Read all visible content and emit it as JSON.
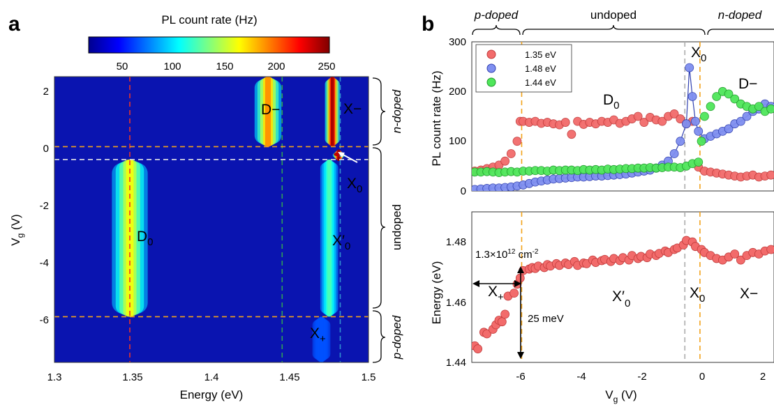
{
  "figure": {
    "panel_a_label": "a",
    "panel_b_label": "b"
  },
  "chart_data": [
    {
      "type": "heatmap",
      "panel": "a",
      "colorbar": {
        "title": "PL count rate (Hz)",
        "ticks": [
          "50",
          "100",
          "150",
          "200",
          "250"
        ],
        "range": [
          10,
          255
        ],
        "colormap": "jet"
      },
      "xlabel": "Energy (eV)",
      "ylabel_main": "V",
      "ylabel_sub": "g",
      "ylabel_unit": " (V)",
      "xlim": [
        1.3,
        1.5
      ],
      "ylim": [
        -7.5,
        2.5
      ],
      "xticks": [
        "1.3",
        "1.35",
        "1.4",
        "1.45",
        "1.5"
      ],
      "yticks": [
        "2",
        "0",
        "-2",
        "-4",
        "-6"
      ],
      "guides": {
        "vertical_energy": [
          1.348,
          1.445,
          1.482
        ],
        "horizontal_vg": [
          0.05,
          -0.4,
          -5.9
        ],
        "colors": [
          "#e8342a",
          "#2e9e58",
          "#2f8fcf",
          "#f2a21a",
          "#e8e8e8"
        ]
      },
      "bands": [
        {
          "name": "D0",
          "center": 1.348,
          "vg_from": -5.9,
          "vg_to": -0.4,
          "peak": 160
        },
        {
          "name": "X'0",
          "center": 1.475,
          "vg_from": -5.9,
          "vg_to": -0.4,
          "peak": 120
        },
        {
          "name": "D-",
          "center": 1.436,
          "vg_from": 0.05,
          "vg_to": 2.5,
          "peak": 190
        },
        {
          "name": "X-",
          "center": 1.477,
          "vg_from": 0.05,
          "vg_to": 2.5,
          "peak": 245
        },
        {
          "name": "X0",
          "center": 1.481,
          "vg_from": -0.45,
          "vg_to": -0.05,
          "peak": 250
        },
        {
          "name": "X+",
          "center": 1.47,
          "vg_from": -7.5,
          "vg_to": -5.9,
          "peak": 60
        }
      ],
      "labels": {
        "dminus": "D−",
        "xminus": "X−",
        "x0_main": "X",
        "x0_sub": "0",
        "d0_main": "D",
        "d0_sub": "0",
        "xp0_main": "X′",
        "xp0_sub": "0",
        "xplus_main": "X",
        "xplus_sub": "+"
      },
      "regions": {
        "n": "n-doped",
        "undoped": "undoped",
        "p": "p-doped"
      }
    },
    {
      "type": "scatter",
      "panel": "b-top",
      "ylabel": "PL count rate (Hz)",
      "xlim": [
        -7.5,
        2.5
      ],
      "ylim": [
        0,
        300
      ],
      "yticks": [
        "0",
        "100",
        "200",
        "300"
      ],
      "legend": {
        "position": "top-left",
        "entries": [
          "1.35 eV",
          "1.48 eV",
          "1.44 eV"
        ]
      },
      "series": [
        {
          "name": "1.35 eV",
          "color": "#f26b6b",
          "edge": "#c03a3a",
          "x": [
            -7.4,
            -7.2,
            -7.0,
            -6.8,
            -6.6,
            -6.4,
            -6.2,
            -6.0,
            -5.9,
            -5.8,
            -5.6,
            -5.4,
            -5.2,
            -5.0,
            -4.8,
            -4.6,
            -4.4,
            -4.2,
            -4.0,
            -3.8,
            -3.6,
            -3.4,
            -3.2,
            -3.0,
            -2.8,
            -2.6,
            -2.4,
            -2.2,
            -2.0,
            -1.8,
            -1.6,
            -1.4,
            -1.2,
            -1.0,
            -0.8,
            -0.6,
            -0.4,
            -0.2,
            0.0,
            0.2,
            0.4,
            0.6,
            0.8,
            1.0,
            1.2,
            1.4,
            1.6,
            1.8,
            2.0,
            2.2,
            2.4
          ],
          "y": [
            40,
            42,
            45,
            48,
            52,
            60,
            75,
            100,
            140,
            140,
            138,
            140,
            136,
            138,
            135,
            133,
            138,
            114,
            140,
            134,
            138,
            135,
            140,
            138,
            143,
            136,
            140,
            145,
            150,
            138,
            148,
            143,
            140,
            150,
            155,
            145,
            135,
            140,
            48,
            40,
            38,
            36,
            34,
            32,
            30,
            28,
            30,
            32,
            28,
            30,
            32
          ]
        },
        {
          "name": "1.48 eV",
          "color": "#7f8ff0",
          "edge": "#3040b0",
          "x": [
            -7.4,
            -7.2,
            -7.0,
            -6.8,
            -6.6,
            -6.4,
            -6.2,
            -6.0,
            -5.8,
            -5.6,
            -5.4,
            -5.2,
            -5.0,
            -4.8,
            -4.6,
            -4.4,
            -4.2,
            -4.0,
            -3.8,
            -3.6,
            -3.4,
            -3.2,
            -3.0,
            -2.8,
            -2.6,
            -2.4,
            -2.2,
            -2.0,
            -1.8,
            -1.6,
            -1.4,
            -1.2,
            -1.0,
            -0.8,
            -0.6,
            -0.4,
            -0.3,
            -0.2,
            -0.1,
            0.0,
            0.2,
            0.4,
            0.6,
            0.8,
            1.0,
            1.2,
            1.4,
            1.6,
            1.8,
            2.0,
            2.2,
            2.4
          ],
          "y": [
            3,
            4,
            5,
            6,
            6,
            7,
            8,
            10,
            12,
            15,
            18,
            20,
            22,
            24,
            25,
            26,
            27,
            28,
            28,
            29,
            30,
            30,
            31,
            32,
            33,
            34,
            36,
            38,
            40,
            42,
            46,
            52,
            60,
            75,
            100,
            135,
            248,
            190,
            140,
            120,
            105,
            110,
            115,
            120,
            125,
            135,
            140,
            150,
            160,
            165,
            175,
            170
          ]
        },
        {
          "name": "1.44 eV",
          "color": "#4fe65a",
          "edge": "#1e9a2a",
          "x": [
            -7.4,
            -7.2,
            -7.0,
            -6.8,
            -6.6,
            -6.4,
            -6.2,
            -6.0,
            -5.8,
            -5.6,
            -5.4,
            -5.2,
            -5.0,
            -4.8,
            -4.6,
            -4.4,
            -4.2,
            -4.0,
            -3.8,
            -3.6,
            -3.4,
            -3.2,
            -3.0,
            -2.8,
            -2.6,
            -2.4,
            -2.2,
            -2.0,
            -1.8,
            -1.6,
            -1.4,
            -1.2,
            -1.0,
            -0.8,
            -0.6,
            -0.4,
            -0.2,
            0.0,
            0.1,
            0.2,
            0.4,
            0.6,
            0.8,
            1.0,
            1.2,
            1.4,
            1.6,
            1.8,
            2.0,
            2.2,
            2.4
          ],
          "y": [
            38,
            38,
            39,
            38,
            37,
            38,
            39,
            38,
            40,
            40,
            41,
            41,
            40,
            42,
            41,
            42,
            42,
            41,
            43,
            42,
            43,
            42,
            44,
            43,
            44,
            45,
            45,
            46,
            46,
            47,
            46,
            47,
            48,
            48,
            47,
            50,
            55,
            58,
            100,
            150,
            170,
            190,
            200,
            195,
            185,
            175,
            170,
            165,
            170,
            160,
            165
          ]
        }
      ],
      "annotations": {
        "d0_main": "D",
        "d0_sub": "0",
        "x0_main": "X",
        "x0_sub": "0",
        "dminus": "D−"
      },
      "regions": {
        "p": "p-doped",
        "undoped": "undoped",
        "n": "n-doped"
      }
    },
    {
      "type": "scatter",
      "panel": "b-bottom",
      "xlabel_main": "V",
      "xlabel_sub": "g",
      "xlabel_unit": " (V)",
      "ylabel": "Energy (eV)",
      "xlim": [
        -7.5,
        2.5
      ],
      "ylim": [
        1.44,
        1.49
      ],
      "xticks": [
        "-6",
        "-4",
        "-2",
        "0",
        "2"
      ],
      "yticks": [
        "1.44",
        "1.46",
        "1.48"
      ],
      "guides": {
        "vertical_vg": [
          -5.85,
          -0.45,
          0.05
        ]
      },
      "series": [
        {
          "name": "1.35 eV",
          "color": "#f26b6b",
          "edge": "#c03a3a",
          "x": [
            -7.4,
            -7.3,
            -7.1,
            -7.0,
            -6.8,
            -6.7,
            -6.6,
            -6.5,
            -6.4,
            -6.3,
            -6.1,
            -6.0,
            -5.9,
            -5.8,
            -5.6,
            -5.5,
            -5.4,
            -5.3,
            -5.1,
            -5.0,
            -4.9,
            -4.7,
            -4.6,
            -4.4,
            -4.3,
            -4.1,
            -4.0,
            -3.8,
            -3.7,
            -3.5,
            -3.4,
            -3.2,
            -3.1,
            -2.9,
            -2.8,
            -2.6,
            -2.5,
            -2.3,
            -2.2,
            -2.0,
            -1.9,
            -1.7,
            -1.6,
            -1.4,
            -1.3,
            -1.1,
            -1.0,
            -0.8,
            -0.7,
            -0.5,
            -0.4,
            -0.2,
            -0.1,
            0.1,
            0.2,
            0.4,
            0.6,
            0.8,
            1.0,
            1.2,
            1.4,
            1.6,
            1.8,
            2.0,
            2.2,
            2.4
          ],
          "y": [
            1.4455,
            1.4445,
            1.45,
            1.4495,
            1.451,
            1.4525,
            1.454,
            1.4535,
            1.456,
            1.462,
            1.463,
            1.466,
            1.468,
            1.4705,
            1.471,
            1.4715,
            1.4712,
            1.472,
            1.4715,
            1.4725,
            1.472,
            1.4728,
            1.4722,
            1.473,
            1.4725,
            1.4735,
            1.4722,
            1.473,
            1.4728,
            1.474,
            1.4732,
            1.4738,
            1.4742,
            1.4735,
            1.4745,
            1.4738,
            1.4748,
            1.474,
            1.4755,
            1.4745,
            1.4752,
            1.4748,
            1.476,
            1.4755,
            1.4762,
            1.477,
            1.4765,
            1.4775,
            1.478,
            1.479,
            1.4805,
            1.48,
            1.4785,
            1.4775,
            1.4765,
            1.4755,
            1.4745,
            1.474,
            1.475,
            1.476,
            1.474,
            1.4755,
            1.4765,
            1.476,
            1.477,
            1.4775
          ]
        }
      ],
      "annotations": {
        "density": "1.3×10",
        "density_exp": "12",
        "density_unit": " cm",
        "density_unit_exp": "-2",
        "split": "25 meV",
        "xplus_main": "X",
        "xplus_sub": "+",
        "xp0_main": "X′",
        "xp0_sub": "0",
        "x0_main": "X",
        "x0_sub": "0",
        "xminus": "X−"
      }
    }
  ]
}
